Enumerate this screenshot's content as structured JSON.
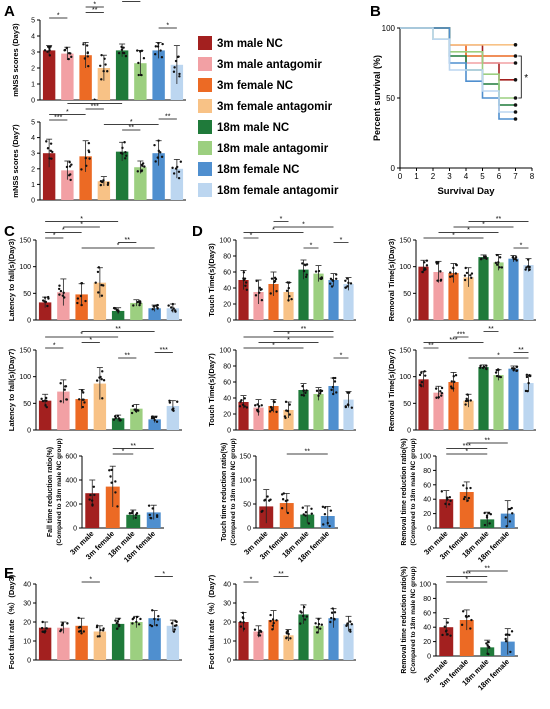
{
  "panel_letters": [
    "A",
    "B",
    "C",
    "D",
    "E"
  ],
  "legend": {
    "items": [
      {
        "label": "3m male NC",
        "color": "#a3201f"
      },
      {
        "label": "3m male antagomir",
        "color": "#f2a0a4"
      },
      {
        "label": "3m female NC",
        "color": "#ec6a24"
      },
      {
        "label": "3m female antagomir",
        "color": "#f8c286"
      },
      {
        "label": "18m male NC",
        "color": "#1f7a3a"
      },
      {
        "label": "18m male antagomir",
        "color": "#9ccf80"
      },
      {
        "label": "18m female NC",
        "color": "#4f8fcf"
      },
      {
        "label": "18m female antagomir",
        "color": "#bcd6f0"
      }
    ]
  },
  "chart_data": [
    {
      "id": "A1",
      "type": "bar",
      "ylabel": "mNSS scores (Day3)",
      "ylim": [
        0,
        5
      ],
      "yticks": [
        0,
        1,
        2,
        3,
        4,
        5
      ],
      "values": [
        3.1,
        2.9,
        2.8,
        2.0,
        3.1,
        2.3,
        3.1,
        2.2
      ],
      "errors": [
        0.3,
        0.4,
        0.8,
        0.8,
        0.4,
        0.8,
        0.5,
        1.2
      ],
      "sig": [
        [
          "*",
          0,
          1
        ],
        [
          "**",
          2,
          3
        ],
        [
          "*",
          2,
          3
        ],
        [
          "*",
          4,
          5
        ],
        [
          "*",
          6,
          7
        ]
      ]
    },
    {
      "id": "A2",
      "type": "bar",
      "ylabel": "mNSS scores (Day7)",
      "ylim": [
        0,
        5
      ],
      "yticks": [
        0,
        1,
        2,
        3,
        4,
        5
      ],
      "values": [
        3.0,
        1.9,
        2.8,
        1.2,
        3.1,
        2.1,
        3.0,
        2.0
      ],
      "errors": [
        0.9,
        0.6,
        1.0,
        0.3,
        0.6,
        0.4,
        0.8,
        0.6
      ],
      "sig": [
        [
          "***",
          0,
          1
        ],
        [
          "*",
          0,
          2
        ],
        [
          "***",
          2,
          3
        ],
        [
          "*",
          1,
          4
        ],
        [
          "**",
          4,
          5
        ],
        [
          "*",
          3,
          6
        ],
        [
          "**",
          6,
          7
        ]
      ]
    },
    {
      "id": "B",
      "type": "line",
      "xlabel": "Survival Day",
      "ylabel": "Percent survival (%)",
      "xlim": [
        0,
        8
      ],
      "ylim": [
        0,
        100
      ],
      "xticks": [
        0,
        1,
        2,
        3,
        4,
        5,
        6,
        7,
        8
      ],
      "yticks": [
        0,
        50,
        100
      ],
      "series": [
        {
          "color": "#a3201f",
          "x": [
            0,
            3,
            5,
            6,
            7
          ],
          "y": [
            100,
            88,
            75,
            63,
            63
          ]
        },
        {
          "color": "#f2a0a4",
          "x": [
            0,
            3,
            4,
            7
          ],
          "y": [
            100,
            88,
            75,
            75
          ]
        },
        {
          "color": "#ec6a24",
          "x": [
            0,
            3,
            4,
            7
          ],
          "y": [
            100,
            88,
            80,
            80
          ]
        },
        {
          "color": "#f8c286",
          "x": [
            0,
            3,
            7
          ],
          "y": [
            100,
            88,
            88
          ]
        },
        {
          "color": "#1f7a3a",
          "x": [
            0,
            3,
            4,
            5,
            6,
            7
          ],
          "y": [
            100,
            80,
            70,
            60,
            45,
            45
          ]
        },
        {
          "color": "#9ccf80",
          "x": [
            0,
            2,
            3,
            5,
            6,
            7
          ],
          "y": [
            100,
            92,
            83,
            67,
            50,
            50
          ]
        },
        {
          "color": "#4f8fcf",
          "x": [
            0,
            3,
            4,
            5,
            6,
            7
          ],
          "y": [
            100,
            75,
            62,
            50,
            35,
            35
          ]
        },
        {
          "color": "#bcd6f0",
          "x": [
            0,
            2,
            3,
            5,
            6,
            7
          ],
          "y": [
            100,
            92,
            70,
            55,
            40,
            40
          ]
        }
      ],
      "annotation": "*"
    },
    {
      "id": "C1",
      "type": "bar",
      "ylabel": "Latency to fall(s)(Day3)",
      "ylim": [
        0,
        150
      ],
      "yticks": [
        0,
        50,
        100,
        150
      ],
      "values": [
        33,
        52,
        48,
        70,
        17,
        32,
        22,
        22
      ],
      "errors": [
        10,
        25,
        20,
        28,
        6,
        6,
        6,
        8
      ],
      "sig": [
        [
          "*",
          0,
          1
        ],
        [
          "*",
          0,
          2
        ],
        [
          "*",
          1,
          3
        ],
        [
          "*",
          0,
          4
        ],
        [
          "*",
          2,
          6
        ],
        [
          "**",
          4,
          5
        ]
      ]
    },
    {
      "id": "C2",
      "type": "bar",
      "ylabel": "Latency to fall(s)(Day7)",
      "ylim": [
        0,
        150
      ],
      "yticks": [
        0,
        50,
        100,
        150
      ],
      "values": [
        55,
        72,
        58,
        87,
        22,
        40,
        20,
        45
      ],
      "errors": [
        12,
        22,
        18,
        30,
        6,
        8,
        6,
        10
      ],
      "sig": [
        [
          "*",
          0,
          1
        ],
        [
          "*",
          2,
          3
        ],
        [
          "*",
          0,
          4
        ],
        [
          "**",
          2,
          6
        ],
        [
          "**",
          4,
          5
        ],
        [
          "***",
          6,
          7
        ]
      ]
    },
    {
      "id": "C3",
      "type": "bar",
      "ylabel": "Fall time reduction ratio(%)",
      "ylabel2": "(Compared to 18m male NC group)",
      "ylim": [
        0,
        600
      ],
      "yticks": [
        0,
        200,
        400,
        600
      ],
      "categories": [
        "3m male",
        "3m female",
        "18m male",
        "18m female"
      ],
      "values": [
        290,
        345,
        110,
        130
      ],
      "errors": [
        110,
        170,
        40,
        60
      ],
      "sig": [
        [
          "*",
          1,
          2
        ],
        [
          "**",
          1,
          3
        ]
      ]
    },
    {
      "id": "D1",
      "type": "bar",
      "ylabel": "Touch Time(s)(Day3)",
      "ylim": [
        0,
        100
      ],
      "yticks": [
        0,
        20,
        40,
        60,
        80,
        100
      ],
      "values": [
        50,
        35,
        45,
        35,
        63,
        58,
        50,
        45
      ],
      "errors": [
        12,
        15,
        15,
        12,
        12,
        10,
        8,
        8
      ],
      "sig": [
        [
          "*",
          0,
          1
        ],
        [
          "*",
          0,
          4
        ],
        [
          "*",
          2,
          6
        ],
        [
          "*",
          2,
          3
        ],
        [
          "*",
          4,
          5
        ],
        [
          "*",
          6,
          7
        ]
      ]
    },
    {
      "id": "D2",
      "type": "bar",
      "ylabel": "Removal Time(s)(Day3)",
      "ylim": [
        0,
        150
      ],
      "yticks": [
        0,
        50,
        100,
        150
      ],
      "values": [
        100,
        90,
        88,
        80,
        118,
        108,
        115,
        103
      ],
      "errors": [
        12,
        20,
        18,
        18,
        4,
        15,
        6,
        12
      ],
      "sig": [
        [
          "*",
          0,
          4
        ],
        [
          "*",
          1,
          5
        ],
        [
          "*",
          2,
          6
        ],
        [
          "**",
          3,
          7
        ],
        [
          "*",
          6,
          7
        ]
      ]
    },
    {
      "id": "D3",
      "type": "bar",
      "ylabel": "Touch Time(s)(Day7)",
      "ylim": [
        0,
        100
      ],
      "yticks": [
        0,
        20,
        40,
        60,
        80,
        100
      ],
      "values": [
        35,
        28,
        30,
        25,
        50,
        45,
        55,
        38
      ],
      "errors": [
        8,
        10,
        8,
        10,
        8,
        8,
        10,
        10
      ],
      "sig": [
        [
          "*",
          0,
          4
        ],
        [
          "*",
          1,
          5
        ],
        [
          "*",
          0,
          6
        ],
        [
          "**",
          2,
          6
        ],
        [
          "*",
          6,
          7
        ]
      ]
    },
    {
      "id": "D4",
      "type": "bar",
      "ylabel": "Removal Time(s)(Day7)",
      "ylim": [
        0,
        150
      ],
      "yticks": [
        0,
        50,
        100,
        150
      ],
      "values": [
        95,
        70,
        90,
        55,
        118,
        103,
        115,
        88
      ],
      "errors": [
        15,
        12,
        18,
        12,
        4,
        10,
        5,
        15
      ],
      "sig": [
        [
          "**",
          0,
          1
        ],
        [
          "***",
          0,
          4
        ],
        [
          "***",
          2,
          3
        ],
        [
          "**",
          4,
          5
        ],
        [
          "*",
          3,
          7
        ],
        [
          "**",
          6,
          7
        ]
      ]
    },
    {
      "id": "D5",
      "type": "bar",
      "ylabel": "Touch time reduction ratio(%)",
      "ylabel2": "(Compared to 18m male NC group)",
      "ylim": [
        0,
        150
      ],
      "yticks": [
        0,
        50,
        100,
        150
      ],
      "categories": [
        "3m male",
        "3m female",
        "18m male",
        "18m female"
      ],
      "values": [
        45,
        52,
        28,
        25
      ],
      "errors": [
        35,
        20,
        18,
        20
      ],
      "sig": [
        [
          "**",
          1,
          3
        ]
      ]
    },
    {
      "id": "D6",
      "type": "bar",
      "ylabel": "Removal time reduction ratio(%)",
      "ylabel2": "(Compared to 18m male NC group)",
      "ylim": [
        0,
        100
      ],
      "yticks": [
        0,
        20,
        40,
        60,
        80,
        100
      ],
      "categories": [
        "3m male",
        "3m female",
        "18m male",
        "18m female"
      ],
      "values": [
        40,
        50,
        12,
        20
      ],
      "errors": [
        12,
        14,
        10,
        18
      ],
      "sig": [
        [
          "*",
          0,
          2
        ],
        [
          "***",
          0,
          2
        ],
        [
          "**",
          1,
          3
        ]
      ]
    },
    {
      "id": "E1",
      "type": "bar",
      "ylabel": "Foot fault rate（%）(Day3)",
      "ylim": [
        0,
        40
      ],
      "yticks": [
        0,
        10,
        20,
        30,
        40
      ],
      "values": [
        17,
        17,
        18,
        15,
        19,
        20,
        22,
        18
      ],
      "errors": [
        3,
        3,
        4,
        3,
        3,
        3,
        4,
        3
      ],
      "sig": [
        [
          "*",
          2,
          3
        ],
        [
          "*",
          6,
          7
        ]
      ]
    },
    {
      "id": "E2",
      "type": "bar",
      "ylabel": "Foot fault rate（%）(Day7)",
      "ylim": [
        0,
        40
      ],
      "yticks": [
        0,
        10,
        20,
        30,
        40
      ],
      "values": [
        20,
        15,
        21,
        13,
        24,
        18,
        22,
        19
      ],
      "errors": [
        5,
        3,
        5,
        3,
        5,
        4,
        5,
        4
      ],
      "sig": [
        [
          "*",
          0,
          1
        ],
        [
          "**",
          2,
          3
        ]
      ]
    },
    {
      "id": "E3",
      "type": "bar",
      "ylabel": "Removal time reduction ratio(%)",
      "ylabel2": "(Compared to 18m male NC group)",
      "ylim": [
        0,
        100
      ],
      "yticks": [
        0,
        20,
        40,
        60,
        80,
        100
      ],
      "categories": [
        "3m male",
        "3m female",
        "18m male",
        "18m female"
      ],
      "values": [
        40,
        50,
        12,
        20
      ],
      "errors": [
        12,
        14,
        10,
        18
      ],
      "sig": [
        [
          "*",
          0,
          2
        ],
        [
          "***",
          0,
          2
        ],
        [
          "**",
          1,
          3
        ]
      ]
    }
  ]
}
